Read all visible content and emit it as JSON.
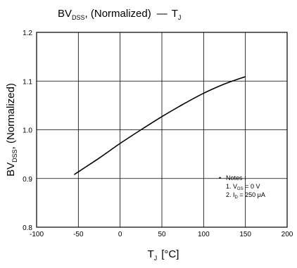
{
  "title": {
    "main": "BV",
    "main_sub": "DSS",
    "main_rest": ", (Normalized)",
    "dash": "—",
    "rhs": "T",
    "rhs_sub": "J"
  },
  "chart_data": {
    "type": "line",
    "title": "BVDSS, (Normalized) — TJ",
    "xlabel": "TJ [°C]",
    "ylabel": "BVDSS, (Normalized)",
    "xlim": [
      -100,
      200
    ],
    "ylim": [
      0.8,
      1.2
    ],
    "x_ticks": [
      -100,
      -50,
      0,
      50,
      100,
      150,
      200
    ],
    "y_ticks": [
      0.8,
      0.9,
      1.0,
      1.1,
      1.2
    ],
    "x_tick_labels": [
      "-100",
      "-50",
      "0",
      "50",
      "100",
      "150",
      "200"
    ],
    "y_tick_labels": [
      "0.8",
      "0.9",
      "1.0",
      "1.1",
      "1.2"
    ],
    "grid": true,
    "series": [
      {
        "x": [
          -55,
          -25,
          0,
          25,
          50,
          75,
          100,
          125,
          150
        ],
        "y": [
          0.908,
          0.942,
          0.972,
          1.0,
          1.027,
          1.052,
          1.075,
          1.094,
          1.109
        ]
      }
    ]
  },
  "axes": {
    "xlabel_main": "T",
    "xlabel_sub": "J",
    "xlabel_unit": "[°C]",
    "ylabel_main": "BV",
    "ylabel_sub": "DSS",
    "ylabel_rest": ", (Normalized)"
  },
  "notes": {
    "bullet": "•",
    "heading": "Notes :",
    "line1_prefix": "1. V",
    "line1_sub": "GS",
    "line1_rest": " = 0 V",
    "line2_prefix": "2. I",
    "line2_sub": "D",
    "line2_rest": " = 250 μA"
  },
  "colors": {
    "line": "#000000",
    "grid": "#000000",
    "background": "#ffffff"
  }
}
